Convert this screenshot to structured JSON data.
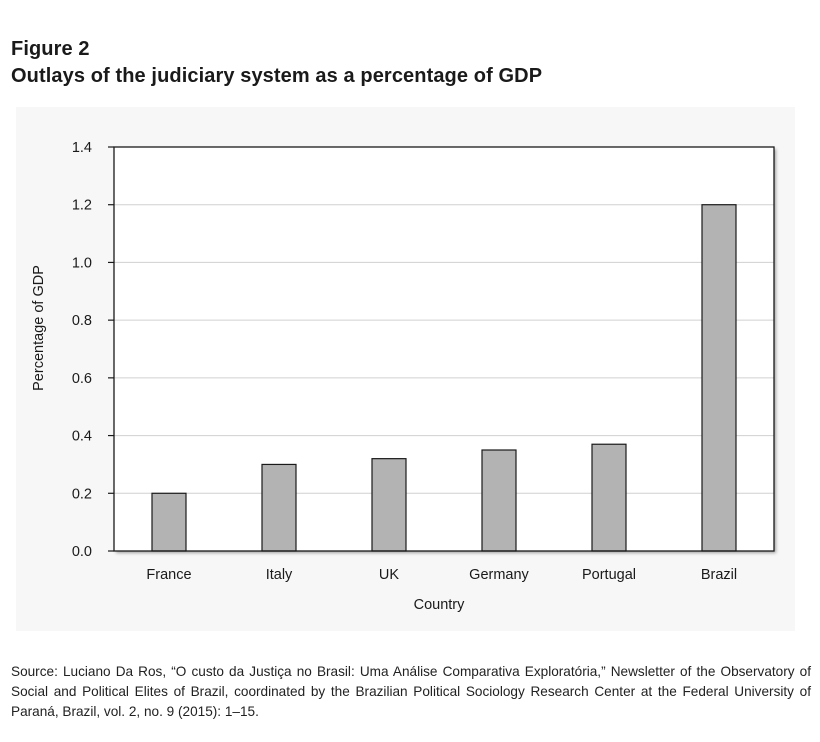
{
  "figure": {
    "label": "Figure 2",
    "title": "Outlays of the judiciary system as a percentage of GDP"
  },
  "chart_data": {
    "type": "bar",
    "title": "",
    "xlabel": "Country",
    "ylabel": "Percentage of GDP",
    "categories": [
      "France",
      "Italy",
      "UK",
      "Germany",
      "Portugal",
      "Brazil"
    ],
    "values": [
      0.2,
      0.3,
      0.32,
      0.35,
      0.37,
      1.2
    ],
    "ylim": [
      0,
      1.4
    ],
    "yticks": [
      0.0,
      0.2,
      0.4,
      0.6,
      0.8,
      1.0,
      1.2,
      1.4
    ],
    "ytick_labels": [
      "0.0",
      "0.2",
      "0.4",
      "0.6",
      "0.8",
      "1.0",
      "1.2",
      "1.4"
    ],
    "grid": true,
    "bar_color": "#b3b3b3",
    "bar_edge_color": "#1a1a1a"
  },
  "source_note": "Source: Luciano Da Ros, “O custo da Justiça no Brasil: Uma Análise Comparativa Exploratória,” Newsletter of the Observatory of Social and Political Elites of Brazil, coordinated by the Brazilian Political Sociology Research Center at the Federal University of Paraná, Brazil, vol. 2, no. 9 (2015): 1–15."
}
